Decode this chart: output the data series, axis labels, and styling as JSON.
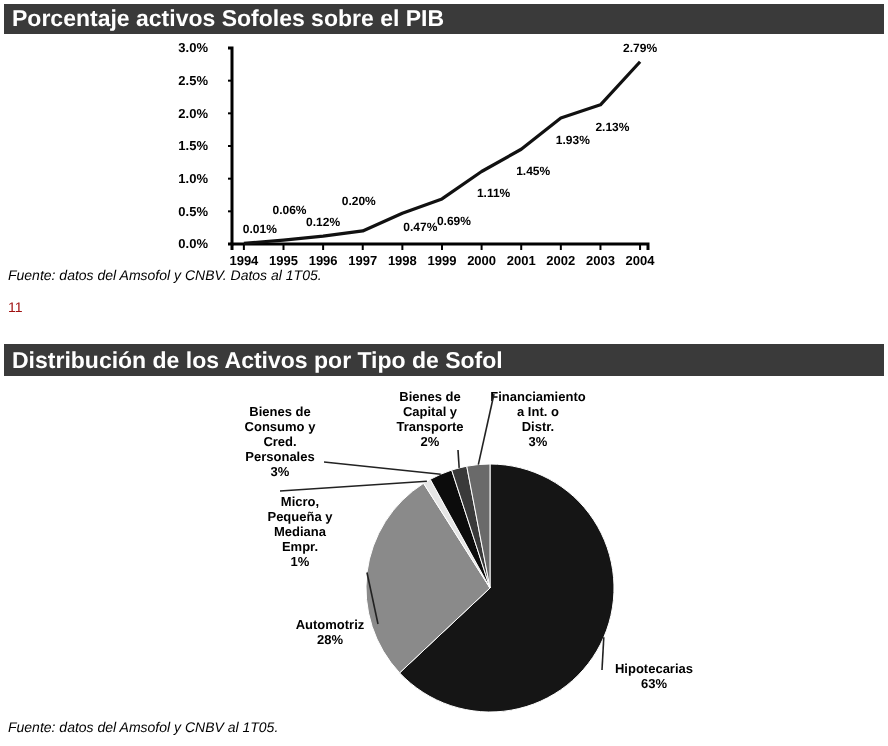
{
  "chart_data": [
    {
      "type": "line",
      "title": "Porcentaje activos Sofoles sobre el PIB",
      "x": [
        1994,
        1995,
        1996,
        1997,
        1998,
        1999,
        2000,
        2001,
        2002,
        2003,
        2004
      ],
      "series": [
        {
          "color": "#111111",
          "values": [
            0.01,
            0.06,
            0.12,
            0.2,
            0.47,
            0.69,
            1.11,
            1.45,
            1.93,
            2.13,
            2.79
          ],
          "value_labels": [
            "0.01%",
            "0.06%",
            "0.12%",
            "0.20%",
            "0.47%",
            "0.69%",
            "1.11%",
            "1.45%",
            "1.93%",
            "2.13%",
            "2.79%"
          ]
        }
      ],
      "xlim": [
        1993.7,
        2004.2
      ],
      "xticks": [
        1994,
        1995,
        1996,
        1997,
        1998,
        1999,
        2000,
        2001,
        2002,
        2003,
        2004
      ],
      "ylim": [
        0,
        3
      ],
      "yticks": [
        {
          "value": 0,
          "label": "0.0%"
        },
        {
          "value": 0.5,
          "label": "0.5%"
        },
        {
          "value": 1,
          "label": "1.0%"
        },
        {
          "value": 1.5,
          "label": "1.5%"
        },
        {
          "value": 2,
          "label": "2.0%"
        },
        {
          "value": 2.5,
          "label": "2.5%"
        },
        {
          "value": 3,
          "label": "3.0%"
        }
      ],
      "grid": false,
      "marker": "none",
      "line_style": "solid",
      "annotations": [
        "Fuente: datos del Amsofol y CNBV. Datos al 1T05.",
        "11"
      ]
    },
    {
      "type": "pie",
      "title": "Distribución de los Activos por Tipo de Sofol",
      "categories": [
        "Hipotecarias",
        "Automotriz",
        "Micro, Pequeña y Mediana Empr.",
        "Bienes de Consumo y Cred. Personales",
        "Bienes de Capital y Transporte",
        "Financiamiento a Int. o Distr."
      ],
      "values": [
        63,
        28,
        1,
        3,
        2,
        3
      ],
      "colors": [
        "#151515",
        "#8a8a8a",
        "#e6e6e6",
        "#0c0c0c",
        "#3a3a3a",
        "#6a6a6a"
      ],
      "value_labels": [
        "63%",
        "28%",
        "1%",
        "3%",
        "2%",
        "3%"
      ],
      "annotations": [
        "Fuente: datos del Amsofol y CNBV al 1T05."
      ]
    }
  ]
}
